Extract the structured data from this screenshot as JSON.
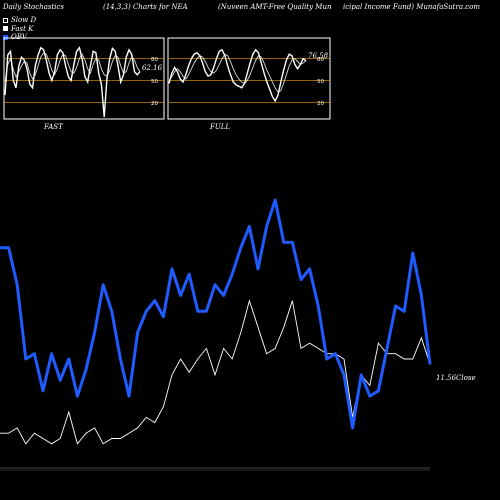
{
  "header": {
    "title": "Daily Stochastics",
    "params": "(14,3,3) Charts for NEA",
    "company": "(Nuveen AMT-Free Quality Mun",
    "company2": "icipal Income Fund) MunafaSutra.com"
  },
  "legend": {
    "items": [
      "Slow D",
      "Fast K",
      "OBV"
    ]
  },
  "colors": {
    "background": "#000000",
    "obv": "#1f5bff",
    "price": "#ffffff",
    "panel_line": "#ffffff",
    "level": "#c8860a"
  },
  "chart_data": [
    {
      "type": "line",
      "name": "stochastic-fast",
      "title": "FAST",
      "last_value": "62.16",
      "levels": [
        80,
        50,
        20
      ],
      "ylim": [
        0,
        100
      ],
      "series": [
        {
          "name": "Slow D",
          "values": [
            48,
            72,
            80,
            65,
            55,
            62,
            70,
            76,
            74,
            60,
            52,
            58,
            70,
            82,
            88,
            86,
            76,
            64,
            58,
            66,
            78,
            86,
            84,
            72,
            62,
            60,
            68,
            80,
            86,
            78,
            66,
            60,
            72,
            80,
            78,
            66,
            58,
            56,
            64,
            76,
            84,
            82,
            70,
            60,
            62,
            74,
            82,
            78,
            68,
            62
          ]
        },
        {
          "name": "Fast K",
          "values": [
            30,
            85,
            90,
            50,
            40,
            70,
            82,
            78,
            66,
            45,
            40,
            70,
            85,
            95,
            92,
            78,
            60,
            50,
            62,
            85,
            92,
            88,
            70,
            55,
            50,
            72,
            90,
            95,
            80,
            55,
            48,
            70,
            90,
            88,
            60,
            45,
            0,
            52,
            80,
            94,
            90,
            70,
            48,
            58,
            82,
            92,
            86,
            62,
            58,
            62
          ]
        }
      ]
    },
    {
      "type": "line",
      "name": "stochastic-full",
      "title": "FULL",
      "last_value": "76.58",
      "levels": [
        80,
        50,
        20
      ],
      "ylim": [
        0,
        100
      ],
      "series": [
        {
          "name": "Slow D",
          "values": [
            50,
            55,
            62,
            66,
            62,
            56,
            52,
            58,
            66,
            74,
            80,
            84,
            82,
            76,
            68,
            62,
            60,
            64,
            72,
            80,
            86,
            84,
            76,
            66,
            58,
            52,
            48,
            46,
            50,
            58,
            68,
            78,
            84,
            82,
            74,
            64,
            56,
            48,
            40,
            34,
            36,
            46,
            58,
            70,
            78,
            80,
            76,
            72,
            74,
            77
          ]
        },
        {
          "name": "Fast K",
          "values": [
            46,
            60,
            68,
            62,
            52,
            48,
            58,
            70,
            80,
            86,
            88,
            84,
            74,
            62,
            56,
            58,
            68,
            80,
            90,
            92,
            84,
            70,
            58,
            48,
            44,
            42,
            40,
            46,
            60,
            74,
            86,
            92,
            88,
            74,
            60,
            48,
            38,
            28,
            22,
            30,
            48,
            64,
            78,
            86,
            84,
            72,
            66,
            72,
            80,
            77
          ]
        }
      ]
    },
    {
      "type": "line",
      "name": "price-obv",
      "ylim": [
        0,
        100
      ],
      "last_value_label": "11.56Close",
      "series": [
        {
          "name": "OBV",
          "values": [
            82,
            82,
            68,
            40,
            42,
            28,
            42,
            32,
            40,
            26,
            36,
            50,
            68,
            58,
            40,
            26,
            50,
            58,
            62,
            56,
            74,
            64,
            72,
            58,
            58,
            68,
            64,
            72,
            82,
            90,
            74,
            90,
            100,
            84,
            84,
            70,
            74,
            60,
            40,
            42,
            34,
            14,
            34,
            26,
            28,
            44,
            60,
            58,
            80,
            64,
            38
          ]
        },
        {
          "name": "Price",
          "values": [
            12,
            12,
            14,
            8,
            12,
            10,
            8,
            10,
            20,
            8,
            12,
            14,
            8,
            10,
            10,
            12,
            14,
            18,
            16,
            22,
            34,
            40,
            35,
            40,
            44,
            34,
            44,
            40,
            50,
            62,
            52,
            42,
            44,
            52,
            62,
            44,
            46,
            44,
            42,
            42,
            40,
            18,
            34,
            30,
            46,
            42,
            42,
            40,
            40,
            48,
            38
          ]
        }
      ]
    }
  ]
}
